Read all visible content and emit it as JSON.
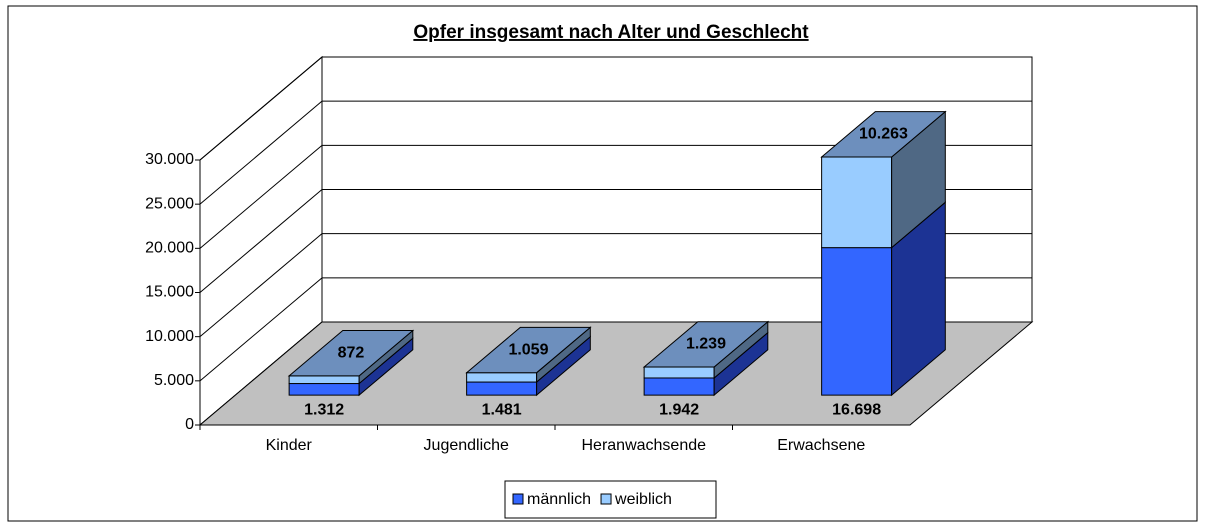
{
  "chart_data": {
    "type": "bar3d_stacked",
    "title": "Opfer insgesamt nach Alter und Geschlecht",
    "categories": [
      "Kinder",
      "Jugendliche",
      "Heranwachsende",
      "Erwachsene"
    ],
    "series": [
      {
        "name": "männlich",
        "color": "#3366ff",
        "side_color": "#1c3394",
        "values": [
          1312,
          1481,
          1942,
          16698
        ],
        "value_labels": [
          "1.312",
          "1.481",
          "1.942",
          "16.698"
        ]
      },
      {
        "name": "weiblich",
        "color": "#99ccff",
        "side_color": "#4f6884",
        "top_color": "#6d8fbd",
        "values": [
          872,
          1059,
          1239,
          10263
        ],
        "value_labels": [
          "872",
          "1.059",
          "1.239",
          "10.263"
        ]
      }
    ],
    "ylim": [
      0,
      30000
    ],
    "yticks": [
      0,
      {
        "value": 5000,
        "label": "5.000"
      },
      {
        "value": 10000,
        "label": "10.000"
      },
      {
        "value": 15000,
        "label": "15.000"
      },
      {
        "value": 20000,
        "label": "20.000"
      },
      {
        "value": 25000,
        "label": "25.000"
      },
      {
        "value": 30000,
        "label": "30.000"
      }
    ],
    "grid": true,
    "legend": "bottom",
    "floor_color": "#c0c0c0"
  }
}
